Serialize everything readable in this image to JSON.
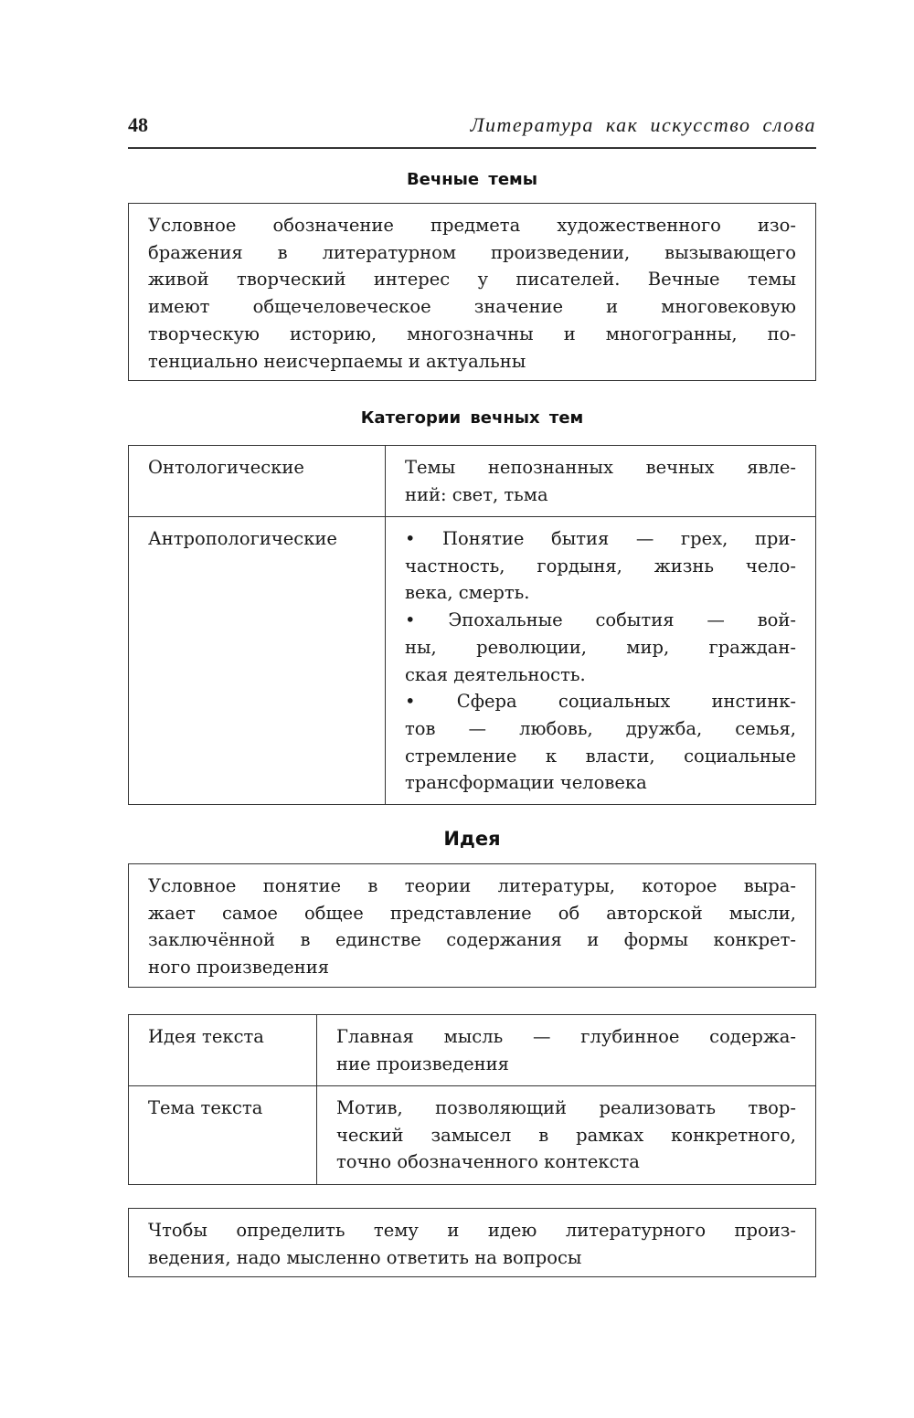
{
  "header": {
    "page_number": "48",
    "running_title": "Литература как искусство слова"
  },
  "eternal_themes": {
    "heading": "Вечные темы",
    "paragraphs": [
      [
        "Условное обозначение предмета художественного изо-",
        "бражения в литературном произведении, вызывающего",
        "живой творческий интерес у писателей. Вечные темы",
        "имеют общечеловеческое значение и многовековую",
        "творческую историю, многозначны и многогранны, по-",
        "тенциально неисчерпаемы и актуальны"
      ]
    ]
  },
  "categories": {
    "heading": "Категории вечных тем",
    "rows": [
      {
        "term": "Онтологические",
        "paragraphs": [
          [
            "Темы непознанных вечных явле-",
            "ний: свет, тьма"
          ]
        ]
      },
      {
        "term": "Антропологические",
        "paragraphs": [
          [
            "• Понятие бытия — грех, при-",
            "частность, гордыня, жизнь чело-",
            "века, смерть."
          ],
          [
            "• Эпохальные события — вой-",
            "ны, революции, мир, граждан-",
            "ская деятельность."
          ],
          [
            "• Сфера социальных инстинк-",
            "тов — любовь, дружба, семья,",
            "стремление к власти, социальные",
            "трансформации человека"
          ]
        ]
      }
    ]
  },
  "idea": {
    "heading": "Идея",
    "paragraphs": [
      [
        "Условное понятие в теории литературы, которое выра-",
        "жает самое общее представление об авторской мысли,",
        "заключённой в единстве содержания и формы конкрет-",
        "ного произведения"
      ]
    ]
  },
  "idea_table": {
    "rows": [
      {
        "term": "Идея текста",
        "paragraphs": [
          [
            "Главная мысль — глубинное содержа-",
            "ние произведения"
          ]
        ]
      },
      {
        "term": "Тема текста",
        "paragraphs": [
          [
            "Мотив, позволяющий реализовать твор-",
            "ческий замысел в рамках конкретного,",
            "точно обозначенного контекста"
          ]
        ]
      }
    ]
  },
  "note": {
    "paragraphs": [
      [
        "Чтобы определить тему и идею литературного произ-",
        "ведения, надо мысленно ответить на вопросы"
      ]
    ]
  }
}
